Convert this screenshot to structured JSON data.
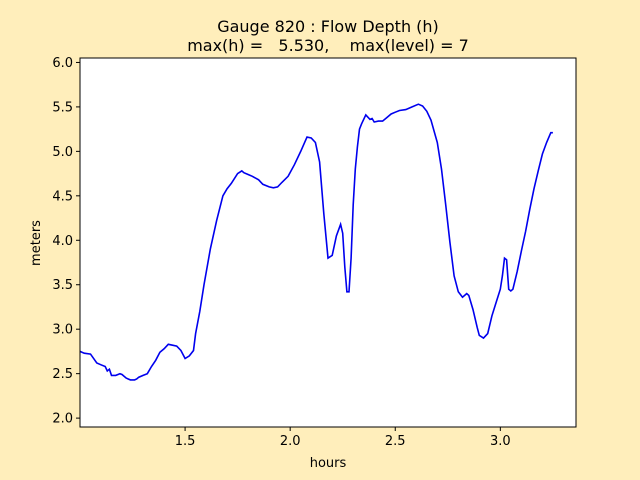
{
  "chart_data": {
    "type": "line",
    "title_line1": "Gauge 820 : Flow Depth (h)",
    "title_line2": "max(h) =   5.530,    max(level) = 7",
    "xlabel": "hours",
    "ylabel": "meters",
    "xlim": [
      1.0,
      3.36
    ],
    "ylim": [
      1.9,
      6.05
    ],
    "xticks": [
      1.5,
      2.0,
      2.5,
      3.0
    ],
    "xtick_labels": [
      "1.5",
      "2.0",
      "2.5",
      "3.0"
    ],
    "yticks": [
      2.0,
      2.5,
      3.0,
      3.5,
      4.0,
      4.5,
      5.0,
      5.5,
      6.0
    ],
    "ytick_labels": [
      "2.0",
      "2.5",
      "3.0",
      "3.5",
      "4.0",
      "4.5",
      "5.0",
      "5.5",
      "6.0"
    ],
    "grid": false,
    "background_color": "#ffeebb",
    "plot_background": "#ffffff",
    "line_color": "#0000ee",
    "series": [
      {
        "x": [
          1.0,
          1.02,
          1.05,
          1.08,
          1.1,
          1.12,
          1.13,
          1.14,
          1.15,
          1.17,
          1.19,
          1.2,
          1.22,
          1.24,
          1.26,
          1.27,
          1.28,
          1.3,
          1.32,
          1.34,
          1.36,
          1.38,
          1.4,
          1.42,
          1.44,
          1.46,
          1.48,
          1.5,
          1.52,
          1.54,
          1.55,
          1.57,
          1.59,
          1.62,
          1.65,
          1.68,
          1.7,
          1.72,
          1.75,
          1.77,
          1.78,
          1.8,
          1.82,
          1.85,
          1.87,
          1.9,
          1.92,
          1.94,
          1.96,
          1.99,
          2.02,
          2.05,
          2.08,
          2.1,
          2.12,
          2.14,
          2.16,
          2.18,
          2.2,
          2.22,
          2.24,
          2.25,
          2.26,
          2.27,
          2.28,
          2.29,
          2.3,
          2.31,
          2.32,
          2.33,
          2.34,
          2.36,
          2.38,
          2.39,
          2.4,
          2.42,
          2.44,
          2.46,
          2.48,
          2.5,
          2.52,
          2.55,
          2.58,
          2.61,
          2.63,
          2.65,
          2.67,
          2.7,
          2.72,
          2.74,
          2.76,
          2.78,
          2.8,
          2.82,
          2.84,
          2.85,
          2.87,
          2.89,
          2.9,
          2.92,
          2.94,
          2.96,
          2.98,
          3.0,
          3.01,
          3.02,
          3.03,
          3.04,
          3.05,
          3.06,
          3.08,
          3.1,
          3.12,
          3.14,
          3.16,
          3.18,
          3.2,
          3.22,
          3.24,
          3.25
        ],
        "y": [
          2.75,
          2.73,
          2.72,
          2.62,
          2.6,
          2.58,
          2.53,
          2.55,
          2.48,
          2.48,
          2.5,
          2.49,
          2.45,
          2.43,
          2.43,
          2.44,
          2.46,
          2.48,
          2.5,
          2.58,
          2.65,
          2.74,
          2.78,
          2.83,
          2.82,
          2.81,
          2.76,
          2.67,
          2.7,
          2.76,
          2.95,
          3.2,
          3.5,
          3.9,
          4.22,
          4.5,
          4.58,
          4.64,
          4.75,
          4.78,
          4.76,
          4.74,
          4.72,
          4.68,
          4.63,
          4.6,
          4.59,
          4.6,
          4.65,
          4.72,
          4.85,
          5.0,
          5.16,
          5.15,
          5.1,
          4.88,
          4.3,
          3.8,
          3.83,
          4.05,
          4.18,
          4.08,
          3.7,
          3.42,
          3.42,
          3.8,
          4.4,
          4.8,
          5.05,
          5.25,
          5.31,
          5.41,
          5.36,
          5.37,
          5.33,
          5.34,
          5.34,
          5.38,
          5.42,
          5.44,
          5.46,
          5.47,
          5.5,
          5.53,
          5.51,
          5.45,
          5.35,
          5.1,
          4.8,
          4.4,
          3.98,
          3.6,
          3.42,
          3.36,
          3.4,
          3.38,
          3.22,
          3.02,
          2.93,
          2.9,
          2.95,
          3.15,
          3.3,
          3.45,
          3.6,
          3.8,
          3.78,
          3.45,
          3.43,
          3.45,
          3.65,
          3.88,
          4.1,
          4.35,
          4.58,
          4.78,
          4.97,
          5.1,
          5.21,
          5.21
        ]
      }
    ]
  }
}
